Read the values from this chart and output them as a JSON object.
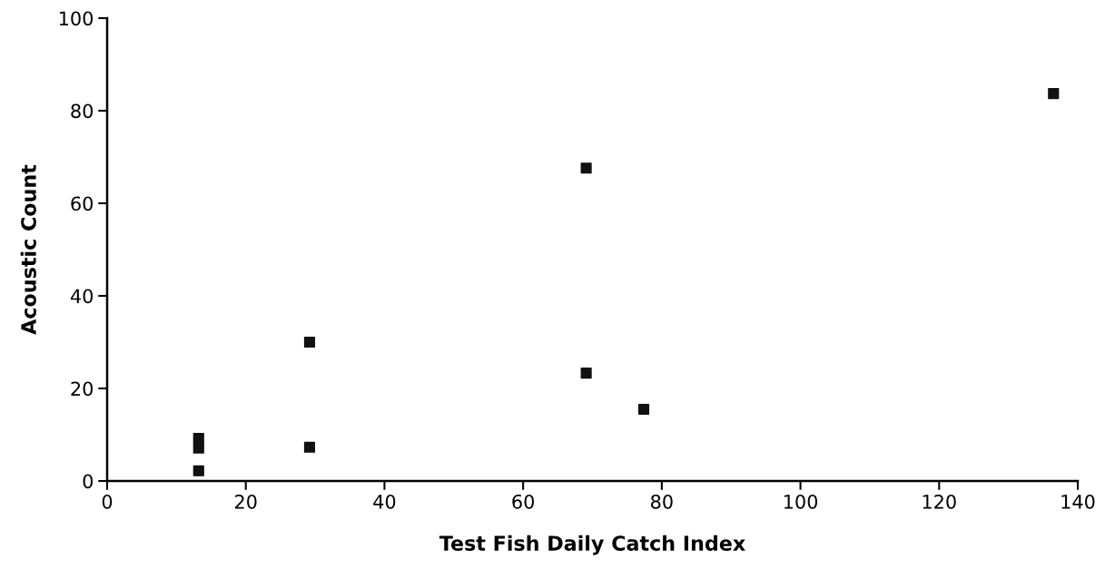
{
  "chart_data": {
    "type": "scatter",
    "xlabel": "Test Fish Daily Catch Index",
    "ylabel": "Acoustic Count",
    "x": [
      13.2,
      13.2,
      13.2,
      29.2,
      29.2,
      69.1,
      69.1,
      77.4,
      136.5
    ],
    "values": [
      9.2,
      7.1,
      2.2,
      30,
      7.3,
      67.6,
      23.3,
      15.5,
      83.7
    ],
    "color": "#111111",
    "marker": "square",
    "xlim": [
      0,
      140
    ],
    "xticks": [
      0,
      20,
      40,
      60,
      80,
      100,
      120,
      140
    ],
    "ylim": [
      0,
      100
    ],
    "yticks": [
      0,
      20,
      40,
      60,
      80,
      100
    ],
    "grid": false,
    "legend": false
  }
}
